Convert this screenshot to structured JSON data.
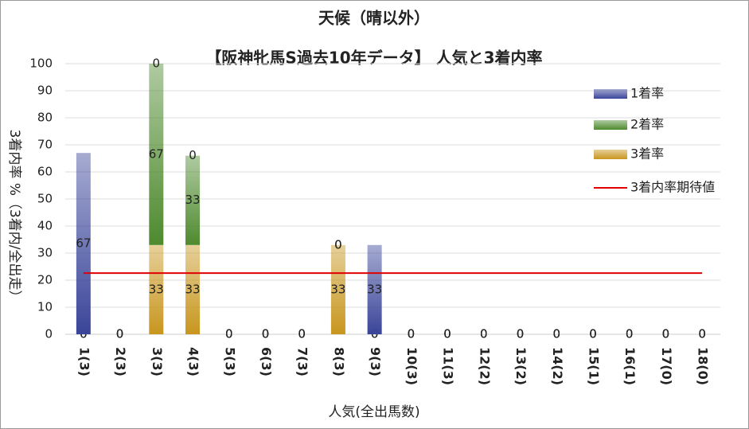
{
  "chart_data": {
    "type": "bar",
    "stacked": true,
    "title": "天候（晴以外）",
    "subtitle": "【阪神牝馬S過去10年データ】 人気と3着内率",
    "x_label": "人気(全出馬数)",
    "y_label": "3着内率 %（3着内/全出走）",
    "categories": [
      "1(3)",
      "2(3)",
      "3(3)",
      "4(3)",
      "5(3)",
      "6(3)",
      "7(3)",
      "8(3)",
      "9(3)",
      "10(3)",
      "11(3)",
      "12(2)",
      "13(2)",
      "14(2)",
      "15(1)",
      "16(1)",
      "17(0)",
      "18(0)"
    ],
    "series": [
      {
        "name": "1着率",
        "color": "#3a4599",
        "values": [
          67,
          0,
          0,
          0,
          0,
          0,
          0,
          0,
          33,
          0,
          0,
          0,
          0,
          0,
          0,
          0,
          0,
          0
        ]
      },
      {
        "name": "2着率",
        "color": "#4e8a2e",
        "values": [
          0,
          0,
          67,
          33,
          0,
          0,
          0,
          0,
          0,
          0,
          0,
          0,
          0,
          0,
          0,
          0,
          0,
          0
        ]
      },
      {
        "name": "3着率",
        "color": "#c8961e",
        "values": [
          0,
          0,
          33,
          33,
          0,
          0,
          0,
          33,
          0,
          0,
          0,
          0,
          0,
          0,
          0,
          0,
          0,
          0
        ]
      },
      {
        "name": "3着内率期待値",
        "type": "line",
        "color": "#e00000",
        "values": [
          22.6,
          22.6,
          22.6,
          22.6,
          22.6,
          22.6,
          22.6,
          22.6,
          22.6,
          22.6,
          22.6,
          22.6,
          22.6,
          22.6,
          22.6,
          22.6,
          22.6,
          22.6
        ]
      }
    ],
    "stack_order": [
      2,
      1,
      0
    ],
    "ylim": [
      0,
      100
    ],
    "yticks": [
      0,
      10,
      20,
      30,
      40,
      50,
      60,
      70,
      80,
      90,
      100
    ],
    "grid": true,
    "legend": "right"
  }
}
